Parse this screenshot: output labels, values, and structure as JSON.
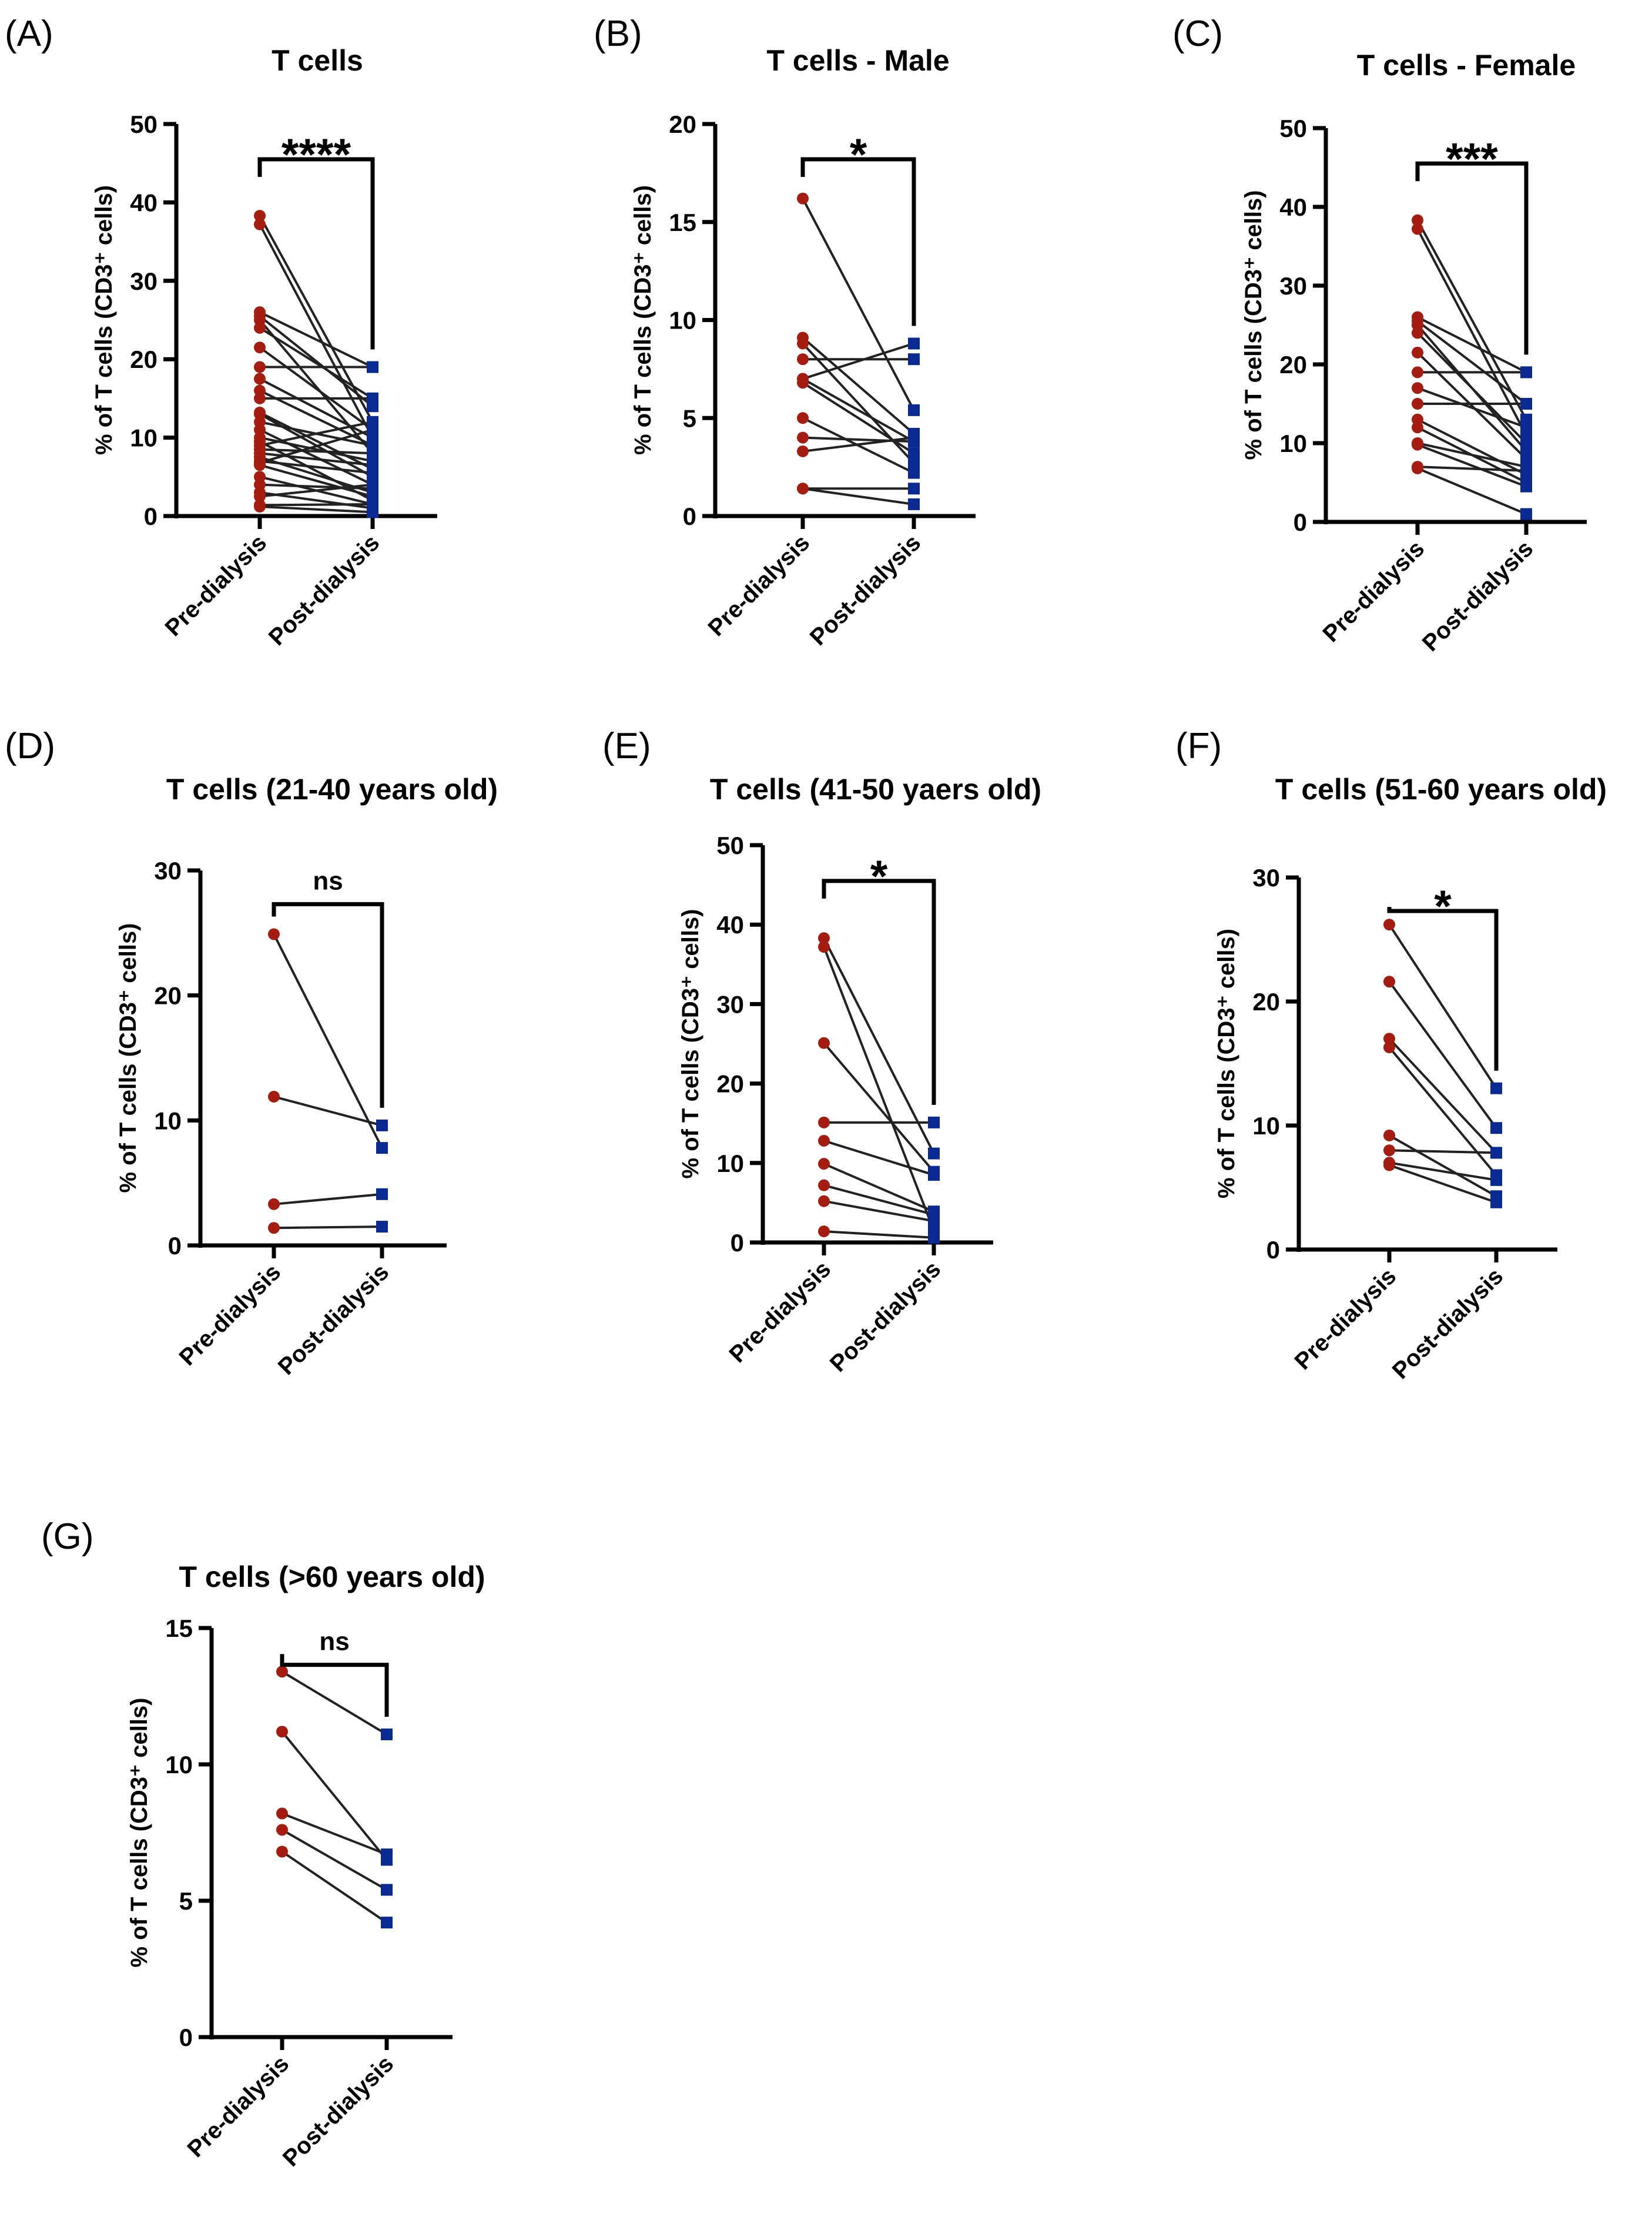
{
  "colors": {
    "pre": "#a51c10",
    "post": "#0a2a93",
    "line": "#222222"
  },
  "chart_data": [
    {
      "type": "line",
      "panel": "(A)",
      "title": "T cells",
      "ylabel": "% of T cells (CD3⁺ cells)",
      "categories": [
        "Pre-dialysis",
        "Post-dialysis"
      ],
      "ylim": [
        0,
        50
      ],
      "yticks": [
        "0",
        "10",
        "20",
        "30",
        "40",
        "50"
      ],
      "significance": "****",
      "pairs": [
        [
          38.3,
          12
        ],
        [
          37.2,
          10
        ],
        [
          26,
          19
        ],
        [
          25.5,
          14
        ],
        [
          25,
          8
        ],
        [
          24,
          15
        ],
        [
          21.5,
          11
        ],
        [
          19,
          19
        ],
        [
          17.5,
          10
        ],
        [
          16,
          9
        ],
        [
          15,
          15
        ],
        [
          13.2,
          6
        ],
        [
          13,
          5
        ],
        [
          12,
          9
        ],
        [
          11,
          4
        ],
        [
          10,
          7
        ],
        [
          9.5,
          2
        ],
        [
          9,
          12
        ],
        [
          8.5,
          8
        ],
        [
          8,
          6.5
        ],
        [
          7.5,
          3
        ],
        [
          7,
          5.5
        ],
        [
          6.8,
          11
        ],
        [
          6.5,
          2.5
        ],
        [
          5,
          1.5
        ],
        [
          4,
          3.5
        ],
        [
          3,
          1
        ],
        [
          2.5,
          4
        ],
        [
          1.4,
          1.5
        ],
        [
          1.2,
          0.5
        ]
      ]
    },
    {
      "type": "line",
      "panel": "(B)",
      "title": "T cells - Male",
      "ylabel": "% of T cells (CD3⁺ cells)",
      "categories": [
        "Pre-dialysis",
        "Post-dialysis"
      ],
      "ylim": [
        0,
        20
      ],
      "yticks": [
        "0",
        "5",
        "10",
        "15",
        "20"
      ],
      "significance": "*",
      "pairs": [
        [
          16.2,
          5.4
        ],
        [
          9.1,
          4.2
        ],
        [
          8.8,
          2.7
        ],
        [
          8.0,
          8.0
        ],
        [
          7.0,
          8.8
        ],
        [
          7.0,
          3.8
        ],
        [
          6.8,
          3.2
        ],
        [
          5.0,
          2.2
        ],
        [
          4.0,
          3.8
        ],
        [
          3.3,
          4.0
        ],
        [
          1.4,
          1.4
        ],
        [
          1.4,
          0.6
        ]
      ]
    },
    {
      "type": "line",
      "panel": "(C)",
      "title": "T cells - Female",
      "ylabel": "% of T cells (CD3⁺ cells)",
      "categories": [
        "Pre-dialysis",
        "Post-dialysis"
      ],
      "ylim": [
        0,
        50
      ],
      "yticks": [
        "0",
        "10",
        "20",
        "30",
        "40",
        "50"
      ],
      "significance": "***",
      "pairs": [
        [
          38.3,
          13
        ],
        [
          37.2,
          11
        ],
        [
          26,
          19
        ],
        [
          25.5,
          15
        ],
        [
          25,
          9
        ],
        [
          24,
          10
        ],
        [
          21.5,
          8
        ],
        [
          19,
          19
        ],
        [
          17,
          12
        ],
        [
          15,
          15
        ],
        [
          13,
          6
        ],
        [
          12,
          5
        ],
        [
          10,
          7
        ],
        [
          9.8,
          4.5
        ],
        [
          7,
          6.5
        ],
        [
          6.8,
          1
        ]
      ]
    },
    {
      "type": "line",
      "panel": "(D)",
      "title": "T cells (21-40 years old)",
      "ylabel": "% of T cells (CD3⁺ cells)",
      "categories": [
        "Pre-dialysis",
        "Post-dialysis"
      ],
      "ylim": [
        0,
        30
      ],
      "yticks": [
        "0",
        "10",
        "20",
        "30"
      ],
      "significance": "ns",
      "pairs": [
        [
          24.9,
          7.8
        ],
        [
          11.9,
          9.6
        ],
        [
          3.3,
          4.1
        ],
        [
          1.4,
          1.5
        ]
      ]
    },
    {
      "type": "line",
      "panel": "(E)",
      "title": "T cells (41-50 yaers old)",
      "ylabel": "% of T cells (CD3⁺ cells)",
      "categories": [
        "Pre-dialysis",
        "Post-dialysis"
      ],
      "ylim": [
        0,
        50
      ],
      "yticks": [
        "0",
        "10",
        "20",
        "30",
        "40",
        "50"
      ],
      "significance": "*",
      "pairs": [
        [
          38.3,
          11.2
        ],
        [
          37.2,
          1.5
        ],
        [
          25.1,
          8.9
        ],
        [
          15.1,
          15.1
        ],
        [
          12.8,
          8.5
        ],
        [
          9.9,
          3.9
        ],
        [
          7.2,
          3.5
        ],
        [
          5.2,
          2.7
        ],
        [
          1.4,
          0.6
        ]
      ]
    },
    {
      "type": "line",
      "panel": "(F)",
      "title": "T cells (51-60 years old)",
      "ylabel": "% of T cells (CD3⁺ cells)",
      "categories": [
        "Pre-dialysis",
        "Post-dialysis"
      ],
      "ylim": [
        0,
        30
      ],
      "yticks": [
        "0",
        "10",
        "20",
        "30"
      ],
      "significance": "*",
      "pairs": [
        [
          26.2,
          13.0
        ],
        [
          21.6,
          9.8
        ],
        [
          17.0,
          7.8
        ],
        [
          16.3,
          6.0
        ],
        [
          9.2,
          4.3
        ],
        [
          8.0,
          7.8
        ],
        [
          7.0,
          5.6
        ],
        [
          6.8,
          3.8
        ]
      ]
    },
    {
      "type": "line",
      "panel": "(G)",
      "title": "T cells (>60 years old)",
      "ylabel": "% of T cells (CD3⁺ cells)",
      "categories": [
        "Pre-dialysis",
        "Post-dialysis"
      ],
      "ylim": [
        0,
        15
      ],
      "yticks": [
        "0",
        "5",
        "10",
        "15"
      ],
      "significance": "ns",
      "pairs": [
        [
          13.4,
          11.1
        ],
        [
          11.2,
          6.5
        ],
        [
          8.2,
          6.7
        ],
        [
          7.6,
          5.4
        ],
        [
          6.8,
          4.2
        ]
      ]
    }
  ]
}
